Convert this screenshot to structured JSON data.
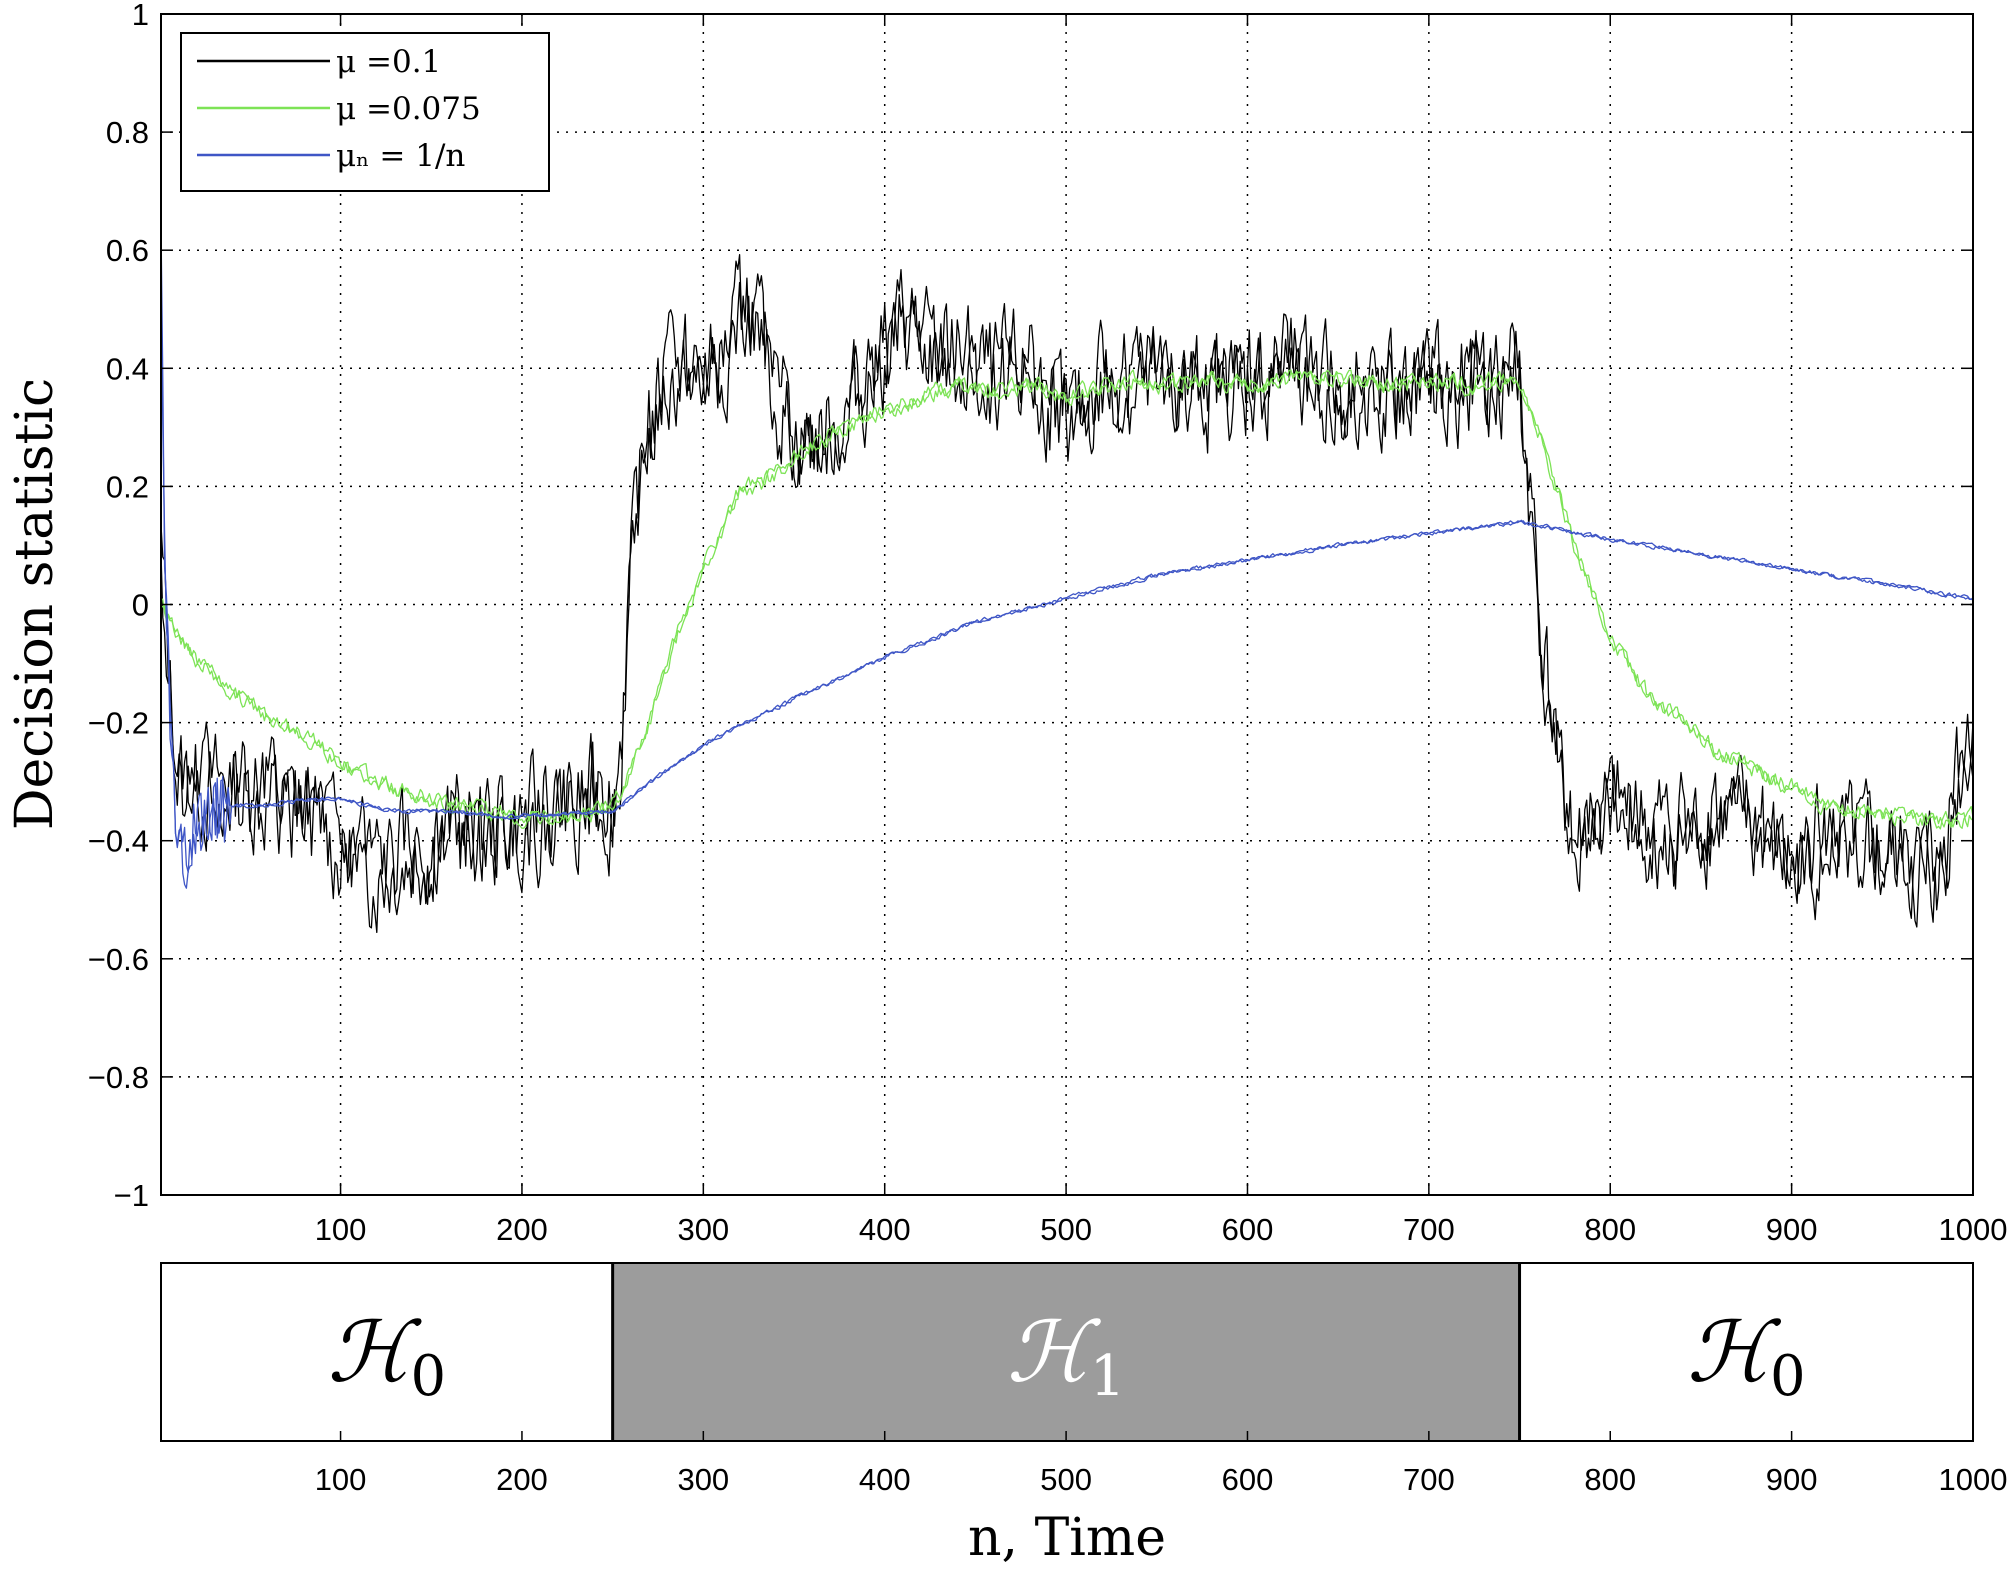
{
  "chart_data": [
    {
      "type": "line",
      "ylabel": "Decision statistic",
      "xlim": [
        1,
        1000
      ],
      "ylim": [
        -1,
        1
      ],
      "xticks": [
        100,
        200,
        300,
        400,
        500,
        600,
        700,
        800,
        900,
        1000
      ],
      "yticks": [
        -1,
        -0.8,
        -0.6,
        -0.4,
        -0.2,
        0,
        0.2,
        0.4,
        0.6,
        0.8,
        1
      ],
      "ytick_labels": [
        "−1",
        "−0.8",
        "−0.6",
        "−0.4",
        "−0.2",
        "0",
        "0.2",
        "0.4",
        "0.6",
        "0.8",
        "1"
      ],
      "grid": true,
      "grid_style": "dotted",
      "legend_position": "top-left",
      "series": [
        {
          "name": "μ =0.1",
          "color": "#000000",
          "traces": 2,
          "x": [
            1,
            5,
            10,
            20,
            40,
            60,
            80,
            100,
            120,
            140,
            160,
            180,
            200,
            220,
            240,
            250,
            255,
            260,
            265,
            270,
            280,
            290,
            300,
            310,
            320,
            325,
            330,
            340,
            350,
            360,
            370,
            380,
            390,
            400,
            410,
            420,
            430,
            440,
            450,
            460,
            480,
            500,
            520,
            540,
            560,
            580,
            600,
            620,
            640,
            660,
            680,
            700,
            720,
            740,
            745,
            750,
            755,
            760,
            765,
            770,
            775,
            780,
            790,
            800,
            820,
            840,
            860,
            880,
            900,
            920,
            940,
            960,
            980,
            1000
          ],
          "y": [
            0.1,
            -0.1,
            -0.28,
            -0.3,
            -0.32,
            -0.33,
            -0.35,
            -0.42,
            -0.45,
            -0.42,
            -0.38,
            -0.4,
            -0.36,
            -0.35,
            -0.32,
            -0.35,
            -0.2,
            0.05,
            0.2,
            0.3,
            0.37,
            0.4,
            0.38,
            0.42,
            0.48,
            0.5,
            0.45,
            0.35,
            0.3,
            0.28,
            0.3,
            0.33,
            0.38,
            0.42,
            0.48,
            0.45,
            0.4,
            0.42,
            0.4,
            0.38,
            0.4,
            0.3,
            0.36,
            0.38,
            0.37,
            0.36,
            0.38,
            0.4,
            0.36,
            0.37,
            0.35,
            0.36,
            0.37,
            0.38,
            0.4,
            0.38,
            0.2,
            0.0,
            -0.1,
            -0.25,
            -0.35,
            -0.4,
            -0.38,
            -0.35,
            -0.36,
            -0.4,
            -0.35,
            -0.38,
            -0.45,
            -0.4,
            -0.42,
            -0.43,
            -0.46,
            -0.2
          ]
        },
        {
          "name": "μ =0.075",
          "color": "#7de356",
          "traces": 2,
          "x": [
            1,
            5,
            10,
            20,
            40,
            60,
            80,
            100,
            120,
            140,
            160,
            180,
            200,
            220,
            240,
            250,
            260,
            270,
            280,
            290,
            300,
            320,
            340,
            360,
            380,
            400,
            420,
            440,
            460,
            480,
            500,
            520,
            540,
            560,
            580,
            600,
            620,
            640,
            660,
            680,
            700,
            720,
            740,
            750,
            760,
            770,
            780,
            790,
            800,
            810,
            820,
            840,
            860,
            880,
            900,
            920,
            940,
            960,
            980,
            1000
          ],
          "y": [
            0.0,
            -0.02,
            -0.05,
            -0.09,
            -0.15,
            -0.19,
            -0.22,
            -0.27,
            -0.3,
            -0.32,
            -0.34,
            -0.35,
            -0.36,
            -0.36,
            -0.35,
            -0.34,
            -0.28,
            -0.2,
            -0.1,
            -0.02,
            0.06,
            0.19,
            0.22,
            0.27,
            0.3,
            0.33,
            0.35,
            0.37,
            0.36,
            0.37,
            0.35,
            0.37,
            0.38,
            0.37,
            0.38,
            0.37,
            0.38,
            0.38,
            0.38,
            0.37,
            0.38,
            0.37,
            0.38,
            0.37,
            0.3,
            0.2,
            0.1,
            0.02,
            -0.05,
            -0.1,
            -0.15,
            -0.2,
            -0.25,
            -0.28,
            -0.31,
            -0.34,
            -0.35,
            -0.36,
            -0.37,
            -0.36
          ]
        },
        {
          "name": "μₙ = 1/n",
          "color": "#3f56c6",
          "traces": 2,
          "x": [
            1,
            3,
            6,
            10,
            15,
            20,
            30,
            40,
            60,
            80,
            100,
            130,
            160,
            190,
            220,
            250,
            280,
            310,
            350,
            400,
            450,
            500,
            550,
            600,
            650,
            700,
            750,
            800,
            850,
            900,
            950,
            1000
          ],
          "y": [
            0.6,
            0.1,
            -0.2,
            -0.4,
            -0.42,
            -0.38,
            -0.35,
            -0.34,
            -0.34,
            -0.33,
            -0.33,
            -0.35,
            -0.35,
            -0.36,
            -0.355,
            -0.35,
            -0.28,
            -0.22,
            -0.16,
            -0.09,
            -0.03,
            0.01,
            0.05,
            0.075,
            0.1,
            0.12,
            0.14,
            0.11,
            0.085,
            0.06,
            0.035,
            0.01
          ]
        }
      ]
    },
    {
      "type": "bar",
      "xlabel": "n, Time",
      "xlim": [
        1,
        1000
      ],
      "xticks": [
        100,
        200,
        300,
        400,
        500,
        600,
        700,
        800,
        900,
        1000
      ],
      "regions": [
        {
          "label": "ℋ",
          "subscript": "0",
          "start": 1,
          "end": 250,
          "fill": "#ffffff",
          "text_color": "#000000"
        },
        {
          "label": "ℋ",
          "subscript": "1",
          "start": 250,
          "end": 750,
          "fill": "#9c9c9c",
          "text_color": "#ffffff"
        },
        {
          "label": "ℋ",
          "subscript": "0",
          "start": 750,
          "end": 1000,
          "fill": "#ffffff",
          "text_color": "#000000"
        }
      ]
    }
  ]
}
